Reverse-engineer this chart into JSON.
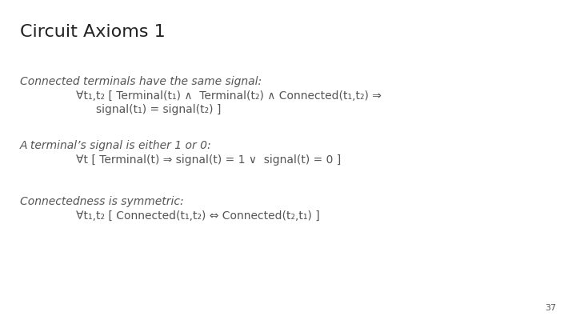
{
  "title": "Circuit Axioms 1",
  "title_color": "#222222",
  "title_fontsize": 16,
  "bg_color": "#ffffff",
  "text_color": "#555555",
  "slide_number": "37",
  "block1_italic": "Connected terminals have the same signal:",
  "block1_line1": "∀t₁,t₂ [ Terminal(t₁) ∧  Terminal(t₂) ∧ Connected(t₁,t₂) ⇒",
  "block1_line2": "signal(t₁) = signal(t₂) ]",
  "block2_italic": "A terminal’s signal is either 1 or 0:",
  "block2_line1": "∀t [ Terminal(t) ⇒ signal(t) = 1 ∨  signal(t) = 0 ]",
  "block3_italic": "Connectedness is symmetric:",
  "block3_line1": "∀t₁,t₂ [ Connected(t₁,t₂) ⇔ Connected(t₂,t₁) ]",
  "italic_fontsize": 10,
  "formula_fontsize": 10,
  "slide_num_fontsize": 8
}
